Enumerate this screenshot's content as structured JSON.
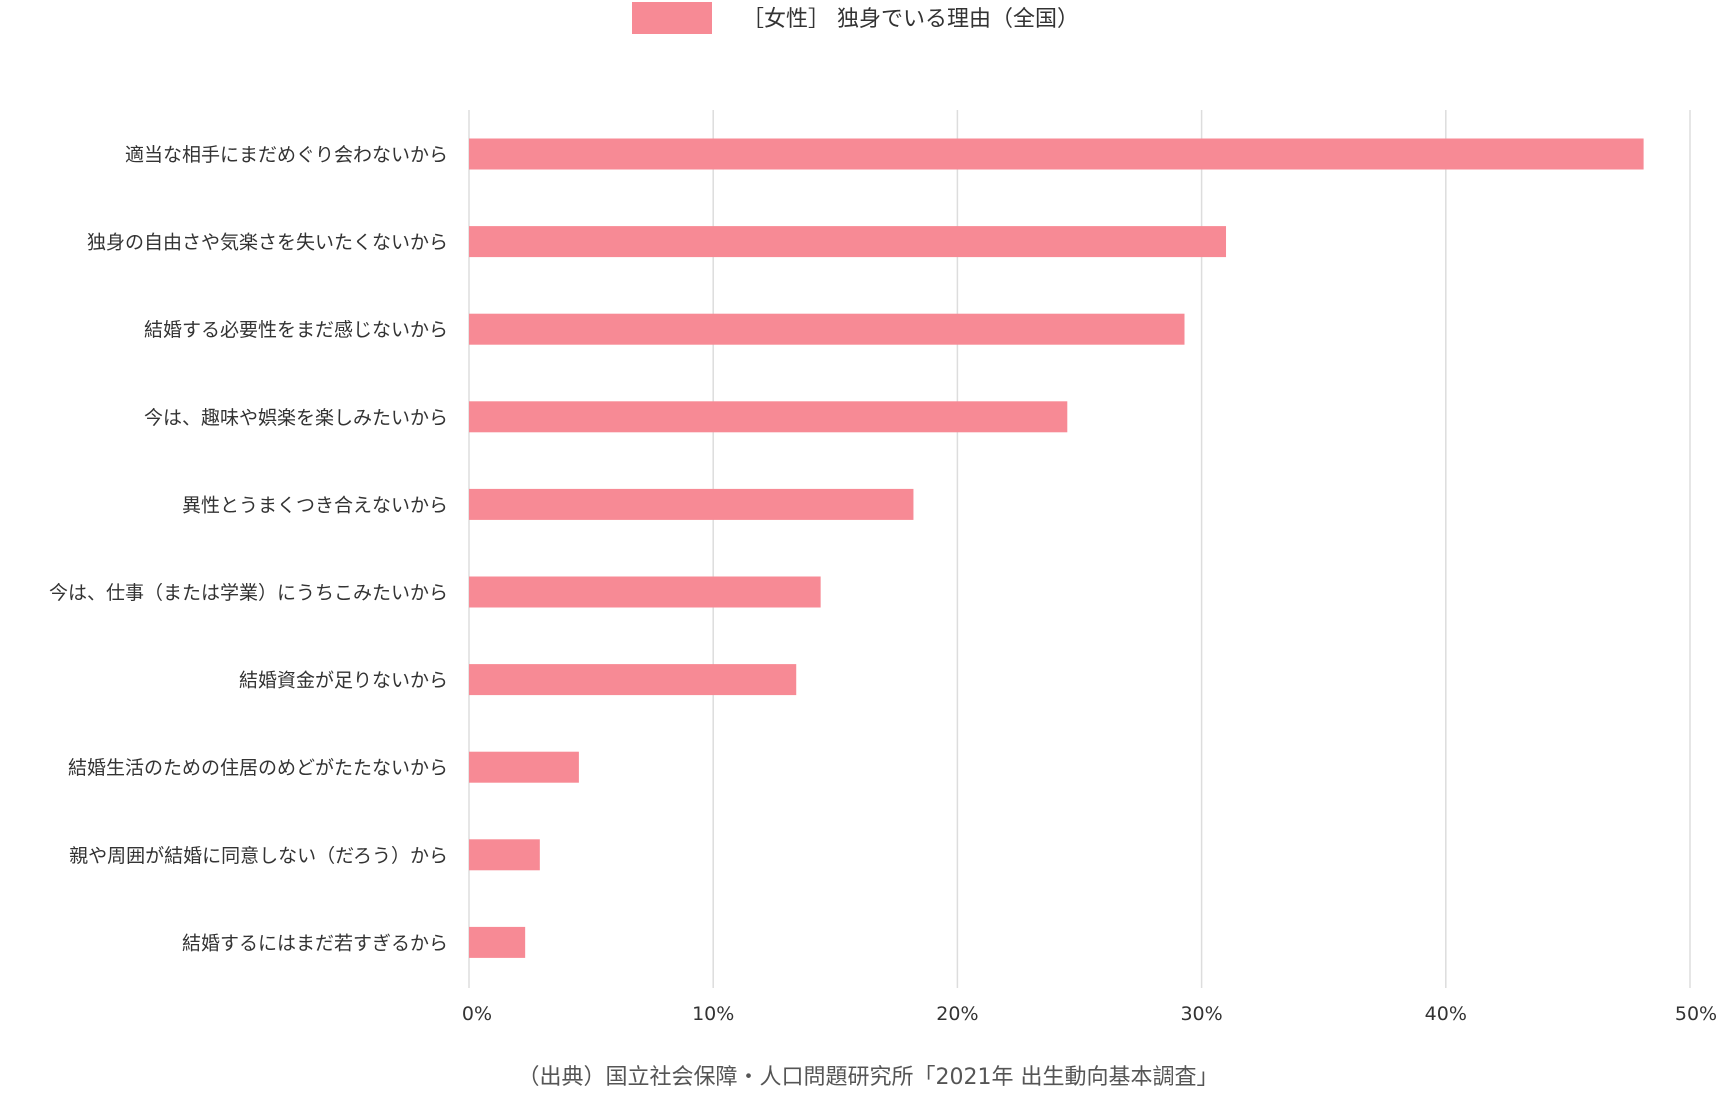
{
  "chart_data": {
    "type": "bar",
    "orientation": "horizontal",
    "categories": [
      "適当な相手にまだめぐり会わないから",
      "独身の自由さや気楽さを失いたくないから",
      "結婚する必要性をまだ感じないから",
      "今は、趣味や娯楽を楽しみたいから",
      "異性とうまくつき合えないから",
      "今は、仕事（または学業）にうちこみたいから",
      "結婚資金が足りないから",
      "結婚生活のための住居のめどがたたないから",
      "親や周囲が結婚に同意しない（だろう）から",
      "結婚するにはまだ若すぎるから"
    ],
    "series": [
      {
        "name": "［女性］ 独身でいる理由（全国）",
        "color": "#f78a95",
        "values": [
          48.1,
          31.0,
          29.3,
          24.5,
          18.2,
          14.4,
          13.4,
          4.5,
          2.9,
          2.3
        ]
      }
    ],
    "xlim": [
      0,
      50
    ],
    "xticks": [
      0,
      10,
      20,
      30,
      40,
      50
    ],
    "xtick_labels": [
      "0%",
      "10%",
      "20%",
      "30%",
      "40%",
      "50%"
    ],
    "grid": true,
    "legend_position": "top-center",
    "source_note": "（出典）国立社会保障・人口問題研究所「2021年 出生動向基本調査」",
    "colors": {
      "bar": "#f78a95",
      "grid": "#dddddd",
      "text": "#333333",
      "note": "#555555"
    }
  }
}
